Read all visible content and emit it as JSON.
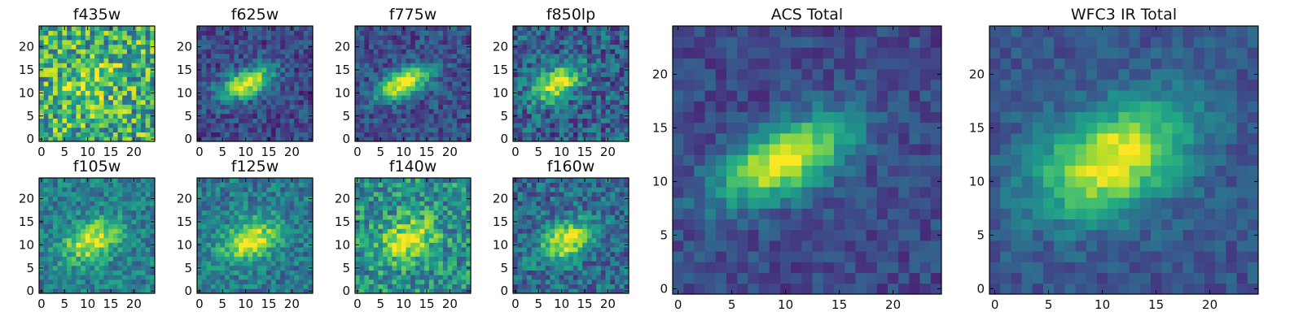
{
  "chart_data": [
    {
      "type": "heatmap",
      "title": "f435w",
      "xticks": [
        "0",
        "5",
        "10",
        "15",
        "20"
      ],
      "yticks": [
        "0",
        "5",
        "10",
        "15",
        "20"
      ],
      "xlim": [
        -0.5,
        24.5
      ],
      "ylim": [
        -0.5,
        24.5
      ],
      "grid": false,
      "colormap": "viridis",
      "source_center": [
        11,
        12
      ],
      "source_note": "noisy, faint"
    },
    {
      "type": "heatmap",
      "title": "f625w",
      "xticks": [
        "0",
        "5",
        "10",
        "15",
        "20"
      ],
      "yticks": [
        "0",
        "5",
        "10",
        "15",
        "20"
      ],
      "xlim": [
        -0.5,
        24.5
      ],
      "ylim": [
        -0.5,
        24.5
      ],
      "grid": false,
      "colormap": "viridis",
      "source_center": [
        10,
        12
      ]
    },
    {
      "type": "heatmap",
      "title": "f775w",
      "xticks": [
        "0",
        "5",
        "10",
        "15",
        "20"
      ],
      "yticks": [
        "0",
        "5",
        "10",
        "15",
        "20"
      ],
      "xlim": [
        -0.5,
        24.5
      ],
      "ylim": [
        -0.5,
        24.5
      ],
      "grid": false,
      "colormap": "viridis",
      "source_center": [
        10,
        12
      ]
    },
    {
      "type": "heatmap",
      "title": "f850lp",
      "xticks": [
        "0",
        "5",
        "10",
        "15",
        "20"
      ],
      "yticks": [
        "0",
        "5",
        "10",
        "15",
        "20"
      ],
      "xlim": [
        -0.5,
        24.5
      ],
      "ylim": [
        -0.5,
        24.5
      ],
      "grid": false,
      "colormap": "viridis",
      "source_center": [
        9,
        12
      ]
    },
    {
      "type": "heatmap",
      "title": "f105w",
      "xticks": [
        "0",
        "5",
        "10",
        "15",
        "20"
      ],
      "yticks": [
        "0",
        "5",
        "10",
        "15",
        "20"
      ],
      "xlim": [
        -0.5,
        24.5
      ],
      "ylim": [
        -0.5,
        24.5
      ],
      "grid": false,
      "colormap": "viridis",
      "source_center": [
        11,
        11
      ]
    },
    {
      "type": "heatmap",
      "title": "f125w",
      "xticks": [
        "0",
        "5",
        "10",
        "15",
        "20"
      ],
      "yticks": [
        "0",
        "5",
        "10",
        "15",
        "20"
      ],
      "xlim": [
        -0.5,
        24.5
      ],
      "ylim": [
        -0.5,
        24.5
      ],
      "grid": false,
      "colormap": "viridis",
      "source_center": [
        11,
        11
      ]
    },
    {
      "type": "heatmap",
      "title": "f140w",
      "xticks": [
        "0",
        "5",
        "10",
        "15",
        "20"
      ],
      "yticks": [
        "0",
        "5",
        "10",
        "15",
        "20"
      ],
      "xlim": [
        -0.5,
        24.5
      ],
      "ylim": [
        -0.5,
        24.5
      ],
      "grid": false,
      "colormap": "viridis",
      "source_center": [
        11,
        11
      ]
    },
    {
      "type": "heatmap",
      "title": "f160w",
      "xticks": [
        "0",
        "5",
        "10",
        "15",
        "20"
      ],
      "yticks": [
        "0",
        "5",
        "10",
        "15",
        "20"
      ],
      "xlim": [
        -0.5,
        24.5
      ],
      "ylim": [
        -0.5,
        24.5
      ],
      "grid": false,
      "colormap": "viridis",
      "source_center": [
        11,
        11
      ]
    },
    {
      "type": "heatmap",
      "title": "ACS Total",
      "xticks": [
        "0",
        "5",
        "10",
        "15",
        "20"
      ],
      "yticks": [
        "0",
        "5",
        "10",
        "15",
        "20"
      ],
      "xlim": [
        -0.5,
        24.5
      ],
      "ylim": [
        -0.5,
        24.5
      ],
      "grid": false,
      "colormap": "viridis",
      "source_center": [
        10,
        12
      ]
    },
    {
      "type": "heatmap",
      "title": "WFC3 IR Total",
      "xticks": [
        "0",
        "5",
        "10",
        "15",
        "20"
      ],
      "yticks": [
        "0",
        "5",
        "10",
        "15",
        "20"
      ],
      "xlim": [
        -0.5,
        24.5
      ],
      "ylim": [
        -0.5,
        24.5
      ],
      "grid": false,
      "colormap": "viridis",
      "source_center": [
        11,
        12
      ]
    }
  ]
}
